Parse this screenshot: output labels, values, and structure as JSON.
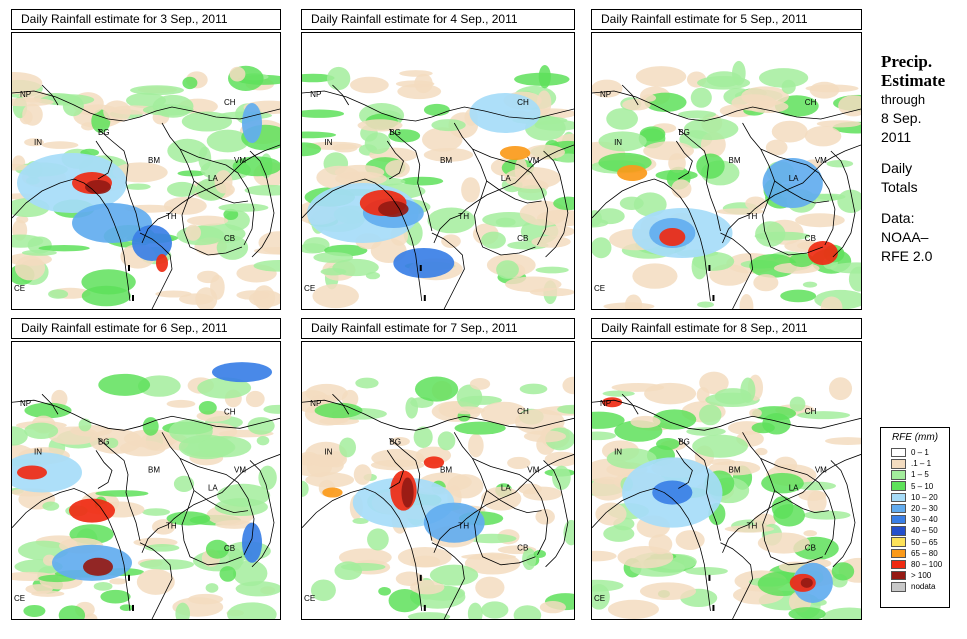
{
  "panels": [
    {
      "title": "Daily Rainfall estimate for  3 Sep., 2011",
      "seed": 3
    },
    {
      "title": "Daily Rainfall estimate for  4 Sep., 2011",
      "seed": 4
    },
    {
      "title": "Daily Rainfall estimate for  5 Sep., 2011",
      "seed": 5
    },
    {
      "title": "Daily Rainfall estimate for  6 Sep., 2011",
      "seed": 6
    },
    {
      "title": "Daily Rainfall estimate for  7 Sep., 2011",
      "seed": 7
    },
    {
      "title": "Daily Rainfall estimate for  8 Sep., 2011",
      "seed": 8
    }
  ],
  "country_labels": [
    "NP",
    "CH",
    "IN",
    "BG",
    "BM",
    "VM",
    "LA",
    "TH",
    "CB",
    "CE"
  ],
  "side": {
    "title_line1": "Precip.",
    "title_line2": "Estimate",
    "through": "through",
    "date_line1": "8 Sep.",
    "date_line2": "2011",
    "daily_line1": "Daily",
    "daily_line2": "Totals",
    "data_line1": "Data:",
    "data_line2": "NOAA–",
    "data_line3": "RFE 2.0"
  },
  "legend": {
    "title": "RFE (mm)",
    "items": [
      {
        "label": "0 – 1",
        "color": "#ffffff"
      },
      {
        "label": ".1 – 1",
        "color": "#f3dcc0"
      },
      {
        "label": "1 – 5",
        "color": "#a3ed9c"
      },
      {
        "label": "5 – 10",
        "color": "#5ee15a"
      },
      {
        "label": "10 – 20",
        "color": "#a6dcf8"
      },
      {
        "label": "20 – 30",
        "color": "#62acef"
      },
      {
        "label": "30 – 40",
        "color": "#3a7fe6"
      },
      {
        "label": "40 – 50",
        "color": "#2550cc"
      },
      {
        "label": "50 – 65",
        "color": "#fde25a"
      },
      {
        "label": "65 – 80",
        "color": "#fb9a1a"
      },
      {
        "label": "80 – 100",
        "color": "#ef2a12"
      },
      {
        "label": "> 100",
        "color": "#951a14"
      },
      {
        "label": "nodata",
        "color": "#c8c8c8"
      }
    ]
  }
}
